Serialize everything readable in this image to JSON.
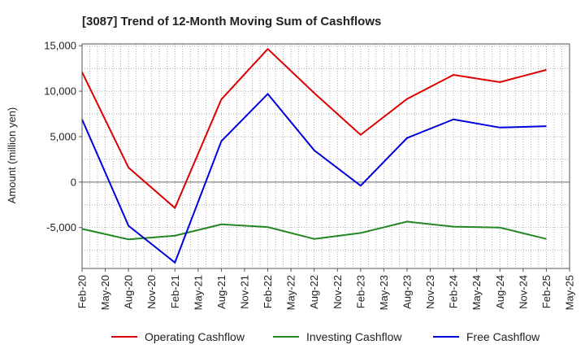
{
  "chart_data": {
    "type": "line",
    "title": "[3087]  Trend of 12-Month Moving Sum of Cashflows",
    "ylabel": "Amount (million yen)",
    "xlabel": "",
    "ylim": [
      -9500,
      15200
    ],
    "yticks": [
      15000,
      10000,
      5000,
      0,
      -5000
    ],
    "ytick_labels": [
      "15,000",
      "10,000",
      "5,000",
      "0",
      "-5,000"
    ],
    "x_tick_labels": [
      "Feb-20",
      "May-20",
      "Aug-20",
      "Nov-20",
      "Feb-21",
      "May-21",
      "Aug-21",
      "Nov-21",
      "Feb-22",
      "May-22",
      "Aug-22",
      "Nov-22",
      "Feb-23",
      "May-23",
      "Aug-23",
      "Nov-23",
      "Feb-24",
      "May-24",
      "Aug-24",
      "Nov-24",
      "Feb-25",
      "May-25"
    ],
    "x": [
      "Feb-20",
      "Aug-20",
      "Feb-21",
      "Aug-21",
      "Feb-22",
      "Aug-22",
      "Feb-23",
      "Aug-23",
      "Feb-24",
      "Aug-24",
      "Feb-25"
    ],
    "series": [
      {
        "name": "Operating Cashflow",
        "color": "#dd0000",
        "values": [
          12100,
          1600,
          -2850,
          9100,
          14650,
          9800,
          5200,
          9150,
          11800,
          11000,
          12350
        ]
      },
      {
        "name": "Investing Cashflow",
        "color": "#228822",
        "values": [
          -5150,
          -6300,
          -5900,
          -4650,
          -4950,
          -6250,
          -5600,
          -4350,
          -4900,
          -5000,
          -6250
        ]
      },
      {
        "name": "Free Cashflow",
        "color": "#0000dd",
        "values": [
          6900,
          -4800,
          -8850,
          4500,
          9700,
          3500,
          -400,
          4850,
          6900,
          6000,
          6150
        ]
      }
    ],
    "grid": true,
    "legend_position": "bottom"
  }
}
